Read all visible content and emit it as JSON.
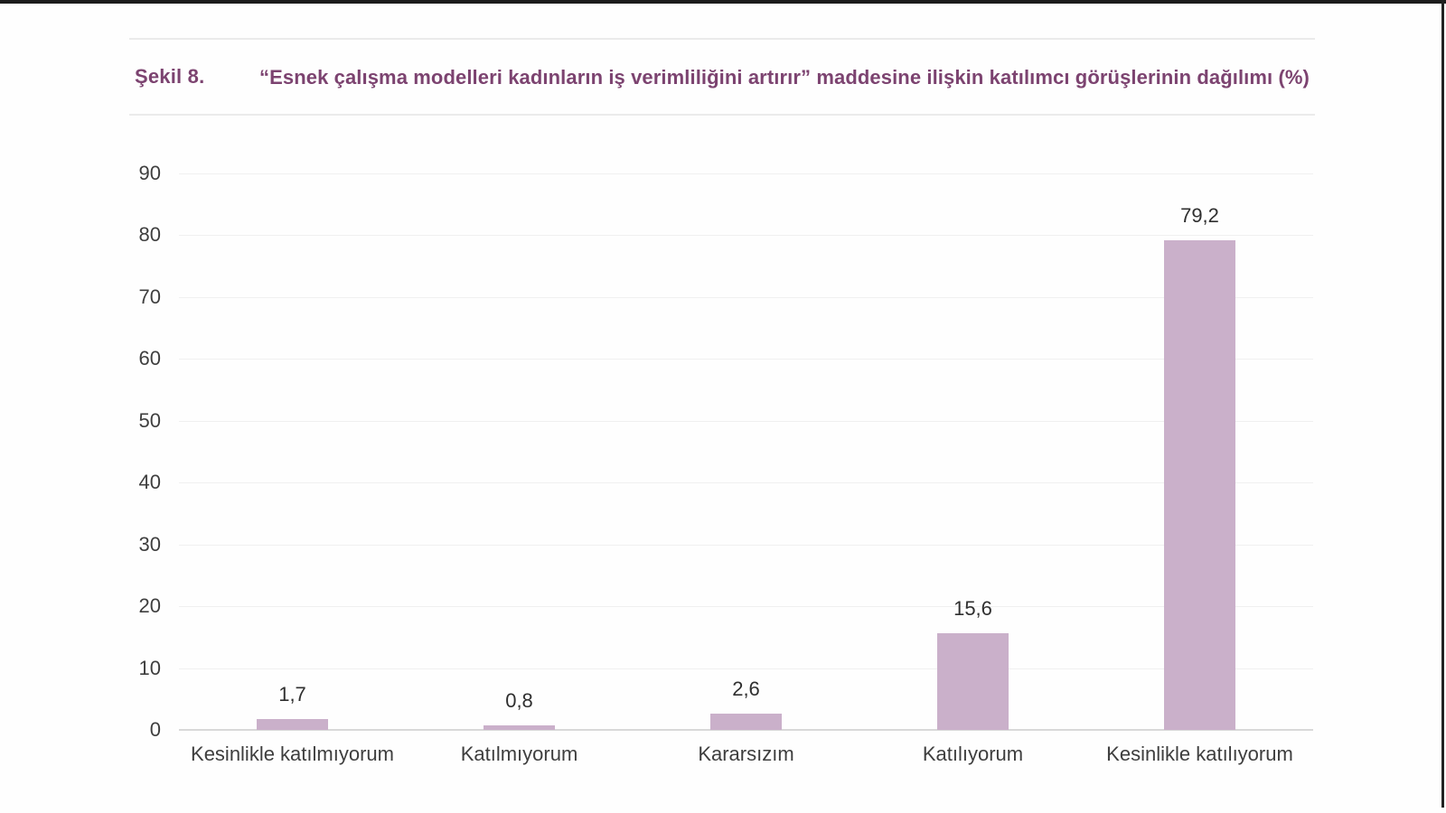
{
  "figure": {
    "label": "Şekil 8."
  },
  "colors": {
    "bar": "#cab0ca",
    "title_text": "#7c4370",
    "axis_text": "#3e3e3e",
    "value_text": "#2f2f2f",
    "baseline": "#d9d9d9",
    "gridline": "#f0f0f0",
    "frame": "#1c1c1c"
  },
  "chart_data": {
    "type": "bar",
    "title": "“Esnek çalışma modelleri kadınların iş verimliliğini artırır” maddesine ilişkin katılımcı görüşlerinin dağılımı (%)",
    "categories": [
      "Kesinlikle katılmıyorum",
      "Katılmıyorum",
      "Kararsızım",
      "Katılıyorum",
      "Kesinlikle katılıyorum"
    ],
    "values": [
      1.7,
      0.8,
      2.6,
      15.6,
      79.2
    ],
    "value_labels": [
      "1,7",
      "0,8",
      "2,6",
      "15,6",
      "79,2"
    ],
    "xlabel": "",
    "ylabel": "",
    "ylim": [
      0,
      90
    ],
    "yticks": [
      0,
      10,
      20,
      30,
      40,
      50,
      60,
      70,
      80,
      90
    ],
    "grid": true,
    "legend": false,
    "bar_color": "#cab0ca"
  }
}
